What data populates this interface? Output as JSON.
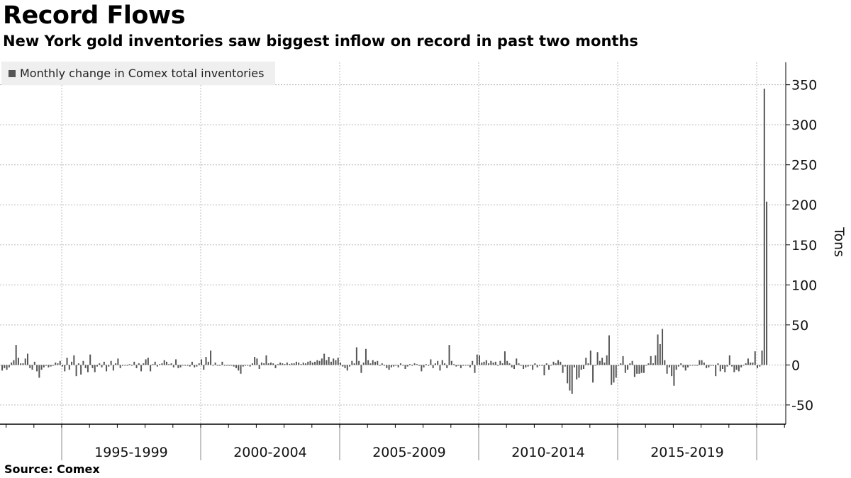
{
  "title": "Record Flows",
  "subtitle": "New York gold inventories saw biggest inflow on record in past two months",
  "source": "Source: Comex",
  "colors": {
    "bar": "#555555",
    "grid": "#bbbbbb",
    "legend_bg": "#efefef"
  },
  "chart_data": {
    "type": "bar",
    "title": "Record Flows",
    "ylabel": "Tons",
    "xlabel": "",
    "ylim": [
      -74,
      378
    ],
    "yticks": [
      -50,
      0,
      50,
      100,
      150,
      200,
      250,
      300,
      350
    ],
    "xcategories": [
      "1995-1999",
      "2000-2004",
      "2005-2009",
      "2010-2014",
      "2015-2019"
    ],
    "grid": true,
    "legend": {
      "position": "top-left",
      "entries": [
        "Monthly change in Comex total inventories"
      ]
    },
    "frequency": "monthly",
    "start": "1992-11",
    "series": [
      {
        "name": "Monthly change in Comex total inventories",
        "values": [
          -7,
          -4,
          -6,
          -3,
          3,
          6,
          25,
          9,
          2,
          2,
          8,
          14,
          -4,
          -6,
          4,
          -8,
          -16,
          -6,
          -3,
          -1,
          -3,
          -2,
          -1,
          3,
          2,
          5,
          -2,
          -8,
          9,
          -6,
          4,
          12,
          -14,
          2,
          -12,
          5,
          -4,
          -9,
          13,
          -4,
          -9,
          -2,
          2,
          -3,
          4,
          -8,
          -2,
          5,
          -7,
          2,
          8,
          -4,
          -1,
          0,
          -1,
          1,
          -1,
          4,
          -4,
          2,
          -8,
          2,
          7,
          9,
          -8,
          1,
          4,
          -2,
          1,
          2,
          6,
          4,
          1,
          2,
          -3,
          7,
          -4,
          -3,
          0,
          -1,
          -1,
          -2,
          4,
          -3,
          -2,
          2,
          7,
          -6,
          10,
          4,
          18,
          -1,
          3,
          -1,
          -1,
          4,
          -1,
          0,
          -1,
          -1,
          -2,
          -4,
          -7,
          -11,
          -2,
          -1,
          0,
          -2,
          2,
          10,
          8,
          -5,
          3,
          2,
          12,
          2,
          3,
          2,
          -4,
          1,
          3,
          2,
          1,
          3,
          1,
          2,
          2,
          4,
          3,
          1,
          3,
          2,
          4,
          5,
          3,
          4,
          6,
          5,
          8,
          14,
          6,
          10,
          4,
          8,
          6,
          9,
          3,
          -2,
          -4,
          -7,
          -2,
          5,
          2,
          22,
          5,
          -10,
          3,
          20,
          6,
          2,
          6,
          4,
          5,
          -1,
          2,
          -1,
          -4,
          -6,
          -3,
          -2,
          -1,
          -3,
          2,
          0,
          -5,
          -2,
          1,
          -1,
          2,
          1,
          -1,
          -8,
          -3,
          1,
          -1,
          7,
          -4,
          2,
          5,
          -7,
          6,
          2,
          -4,
          25,
          5,
          1,
          -2,
          -1,
          -4,
          -1,
          0,
          0,
          -3,
          5,
          -10,
          13,
          12,
          3,
          4,
          6,
          2,
          5,
          3,
          4,
          -1,
          5,
          2,
          17,
          5,
          2,
          -3,
          -5,
          8,
          2,
          -1,
          -5,
          -3,
          -2,
          -1,
          -6,
          2,
          -3,
          -1,
          -1,
          -13,
          2,
          -6,
          0,
          4,
          2,
          6,
          4,
          -10,
          -2,
          -23,
          -32,
          -36,
          -3,
          -18,
          -16,
          -6,
          -5,
          9,
          2,
          18,
          -22,
          0,
          16,
          5,
          9,
          3,
          12,
          37,
          -25,
          -22,
          -16,
          -1,
          2,
          11,
          -10,
          -6,
          2,
          5,
          -15,
          -11,
          -11,
          -10,
          -10,
          0,
          2,
          11,
          2,
          12,
          38,
          26,
          45,
          6,
          -11,
          -3,
          -14,
          -26,
          -6,
          -2,
          2,
          -3,
          -7,
          -3,
          0,
          0,
          0,
          -1,
          6,
          6,
          3,
          -4,
          -3,
          -1,
          -1,
          -14,
          2,
          -8,
          -5,
          -9,
          -2,
          12,
          -2,
          -9,
          -6,
          -8,
          -3,
          0,
          2,
          8,
          3,
          3,
          17,
          -4,
          -2,
          18,
          345,
          204
        ]
      }
    ]
  }
}
